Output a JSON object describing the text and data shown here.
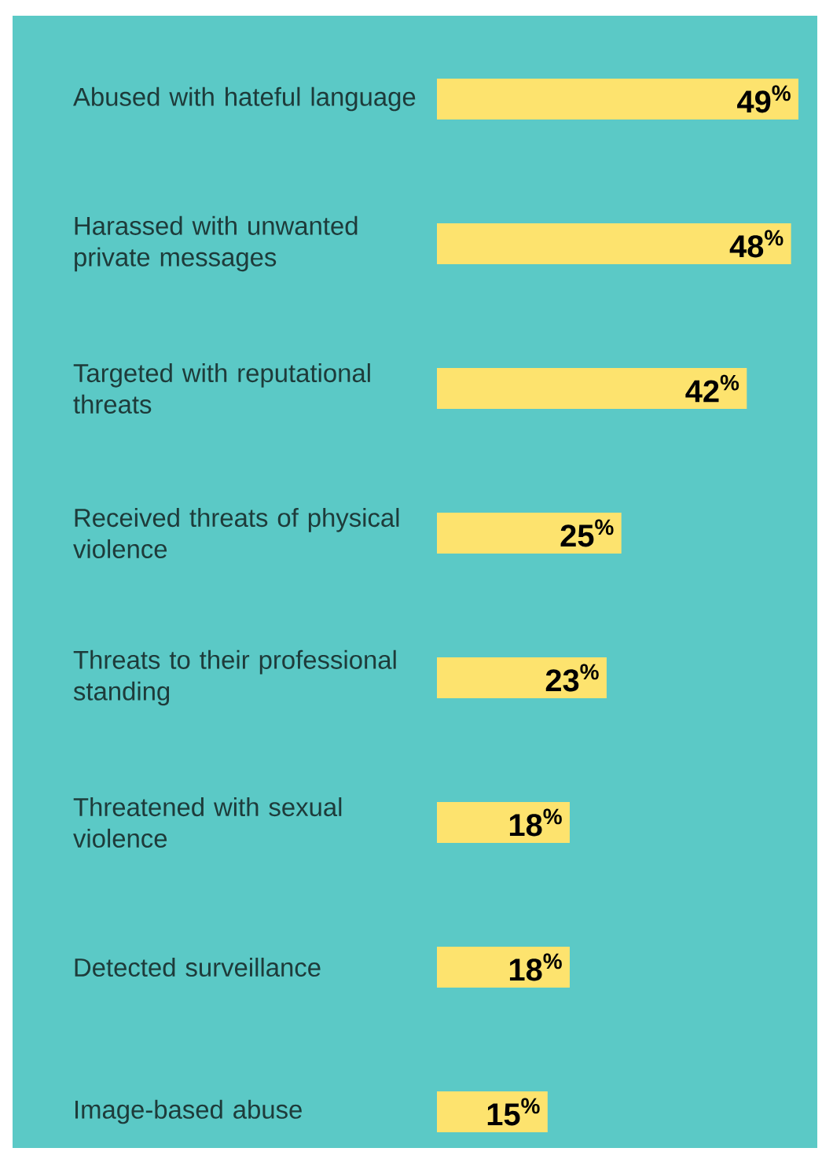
{
  "chart_data": {
    "type": "bar",
    "orientation": "horizontal",
    "tick_labels": "y",
    "categories": [
      "Abused with hateful language",
      "Harassed with unwanted private messages",
      "Targeted with reputational threats",
      "Received threats of physical violence",
      "Threats to their professional standing",
      "Threatened with sexual violence",
      "Detected surveillance",
      "Image-based abuse"
    ],
    "values": [
      49,
      48,
      42,
      25,
      23,
      18,
      18,
      15
    ],
    "value_labels": [
      "49$^{%}$",
      "48$^{%}$",
      "42$^{%}$",
      "25$^{%}$",
      "23$^{%}$",
      "18$^{%}$",
      "18$^{%}$",
      "15$^{%}$"
    ],
    "color": "#fde36e",
    "xlim": [
      0,
      49
    ]
  }
}
